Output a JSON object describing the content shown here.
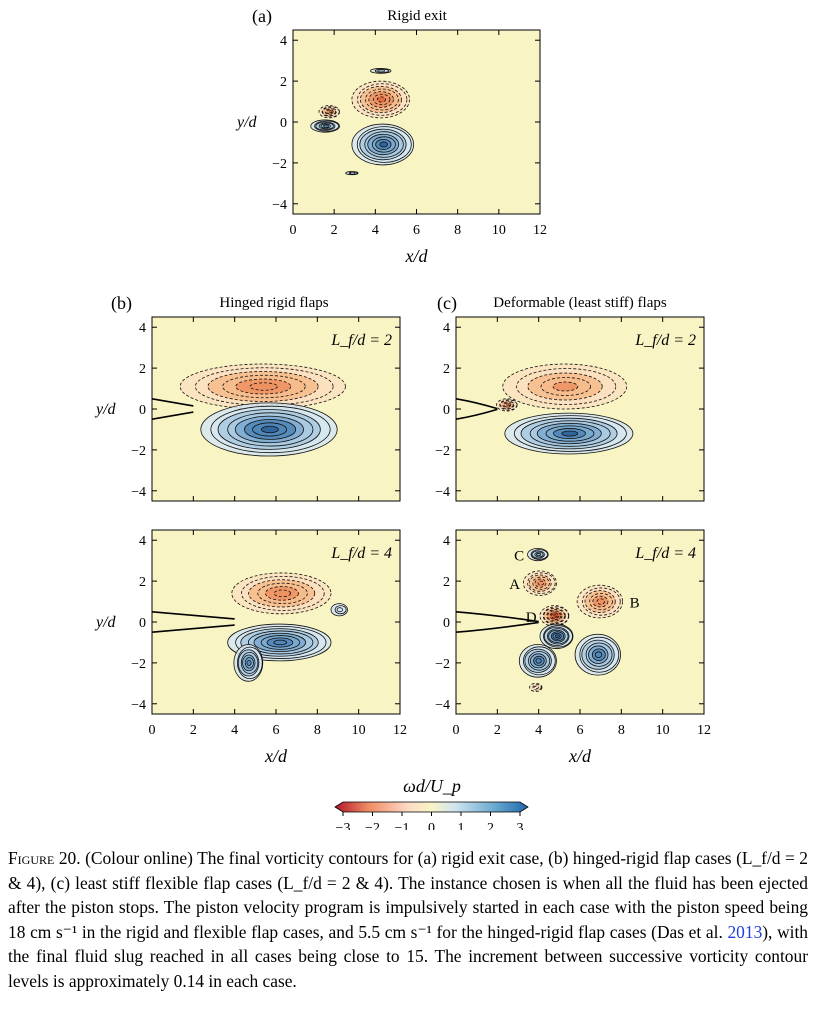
{
  "panels": [
    {
      "id": "a",
      "label": "(a)",
      "title": "Rigid exit",
      "annotation": "",
      "xlabel": "x/d",
      "ylabel": "y/d",
      "xticks": [
        "0",
        "2",
        "4",
        "6",
        "8",
        "10",
        "12"
      ],
      "yticks": [
        "4",
        "2",
        "0",
        "−2",
        "−4"
      ]
    },
    {
      "id": "b1",
      "label": "(b)",
      "title": "Hinged rigid flaps",
      "annotation": "L_f/d = 2",
      "xlabel": "",
      "ylabel": "y/d",
      "xticks": [],
      "yticks": [
        "4",
        "2",
        "0",
        "−2",
        "−4"
      ]
    },
    {
      "id": "c1",
      "label": "(c)",
      "title": "Deformable (least stiff) flaps",
      "annotation": "L_f/d = 2",
      "xlabel": "",
      "ylabel": "",
      "xticks": [],
      "yticks": [
        "4",
        "2",
        "0",
        "−2",
        "−4"
      ]
    },
    {
      "id": "b2",
      "label": "",
      "title": "",
      "annotation": "L_f/d = 4",
      "xlabel": "x/d",
      "ylabel": "y/d",
      "xticks": [
        "0",
        "2",
        "4",
        "6",
        "8",
        "10",
        "12"
      ],
      "yticks": [
        "4",
        "2",
        "0",
        "−2",
        "−4"
      ]
    },
    {
      "id": "c2",
      "label": "",
      "title": "",
      "annotation": "L_f/d = 4",
      "xlabel": "x/d",
      "ylabel": "",
      "xticks": [
        "0",
        "2",
        "4",
        "6",
        "8",
        "10",
        "12"
      ],
      "yticks": [
        "4",
        "2",
        "0",
        "−2",
        "−4"
      ]
    }
  ],
  "vortex_labels": [
    "C",
    "A",
    "D",
    "B"
  ],
  "colorbar": {
    "label": "ωd/U_p",
    "ticks": [
      "−3",
      "−2",
      "−1",
      "0",
      "1",
      "2",
      "3"
    ],
    "colors": [
      "#b2182b",
      "#ef8a62",
      "#fddbc7",
      "#f7f7c4",
      "#d1e5f0",
      "#67a9cf",
      "#2166ac"
    ]
  },
  "colors": {
    "background": "#f8f4c4",
    "positive": "#3b6fa8",
    "negative": "#d2452a"
  },
  "caption": {
    "lead": "Figure 20.",
    "text1": " (Colour online) The final vorticity contours for (a) rigid exit case, (b) hinged-rigid flap cases (L_f/d = 2 & 4), (c) least stiff flexible flap cases (L_f/d = 2 & 4). The instance chosen is when all the fluid has been ejected after the piston stops. The piston velocity program is impulsively started in each case with the piston speed being 18 cm s⁻¹ in the rigid and flexible flap cases, and 5.5 cm s⁻¹ for the hinged-rigid flap cases (Das et al. ",
    "cite": "2013",
    "text2": "), with the final fluid slug reached in all cases being close to 15. The increment between successive vorticity contour levels is approximately 0.14 in each case."
  },
  "chart_data": [
    {
      "type": "heatmap",
      "title": "Rigid exit",
      "xlabel": "x/d",
      "ylabel": "y/d",
      "xlim": [
        0,
        12
      ],
      "ylim": [
        -4.5,
        4.5
      ],
      "contour_increment": 0.14,
      "vortices": [
        {
          "x": 4.3,
          "y": 1.1,
          "rx": 1.4,
          "ry": 0.9,
          "sign": "negative",
          "peak": -2.2
        },
        {
          "x": 4.4,
          "y": -1.1,
          "rx": 1.5,
          "ry": 1.0,
          "sign": "positive",
          "peak": 2.6
        },
        {
          "x": 1.8,
          "y": 0.5,
          "rx": 0.5,
          "ry": 0.3,
          "sign": "negative",
          "peak": -2.0
        },
        {
          "x": 1.6,
          "y": -0.2,
          "rx": 0.7,
          "ry": 0.3,
          "sign": "positive",
          "peak": 2.0
        },
        {
          "x": 4.3,
          "y": 2.5,
          "rx": 0.5,
          "ry": 0.12,
          "sign": "positive",
          "peak": 0.5
        },
        {
          "x": 2.9,
          "y": -2.5,
          "rx": 0.3,
          "ry": 0.08,
          "sign": "positive",
          "peak": 0.4
        }
      ]
    },
    {
      "type": "heatmap",
      "title": "Hinged rigid flaps",
      "annotation": "L_f/d = 2",
      "xlim": [
        0,
        12
      ],
      "ylim": [
        -4.5,
        4.5
      ],
      "flap_length": 2,
      "vortices": [
        {
          "x": 5.4,
          "y": 1.1,
          "rx": 4.0,
          "ry": 1.1,
          "sign": "negative",
          "peak": -2.0
        },
        {
          "x": 5.7,
          "y": -1.0,
          "rx": 3.3,
          "ry": 1.3,
          "sign": "positive",
          "peak": 2.7
        }
      ]
    },
    {
      "type": "heatmap",
      "title": "Deformable (least stiff) flaps",
      "annotation": "L_f/d = 2",
      "xlim": [
        0,
        12
      ],
      "ylim": [
        -4.5,
        4.5
      ],
      "flap_length": 2,
      "vortices": [
        {
          "x": 5.3,
          "y": 1.1,
          "rx": 3.0,
          "ry": 1.1,
          "sign": "negative",
          "peak": -1.8
        },
        {
          "x": 5.5,
          "y": -1.2,
          "rx": 3.1,
          "ry": 1.0,
          "sign": "positive",
          "peak": 2.6
        },
        {
          "x": 2.5,
          "y": 0.2,
          "rx": 0.5,
          "ry": 0.3,
          "sign": "negative",
          "peak": -2.0
        }
      ]
    },
    {
      "type": "heatmap",
      "annotation": "L_f/d = 4",
      "xlabel": "x/d",
      "ylabel": "y/d",
      "xlim": [
        0,
        12
      ],
      "ylim": [
        -4.5,
        4.5
      ],
      "flap_length": 4,
      "vortices": [
        {
          "x": 6.3,
          "y": 1.4,
          "rx": 2.4,
          "ry": 1.0,
          "sign": "negative",
          "peak": -2.0
        },
        {
          "x": 6.2,
          "y": -1.0,
          "rx": 2.5,
          "ry": 0.9,
          "sign": "positive",
          "peak": 2.5
        },
        {
          "x": 4.7,
          "y": -2.0,
          "rx": 0.7,
          "ry": 0.9,
          "sign": "positive",
          "peak": 2.2
        },
        {
          "x": 9.1,
          "y": 0.6,
          "rx": 0.4,
          "ry": 0.3,
          "sign": "positive",
          "peak": 0.6
        }
      ]
    },
    {
      "type": "heatmap",
      "annotation": "L_f/d = 4",
      "xlabel": "x/d",
      "xlim": [
        0,
        12
      ],
      "ylim": [
        -4.5,
        4.5
      ],
      "flap_length": 4,
      "vortices": [
        {
          "label": "C",
          "x": 4.0,
          "y": 3.3,
          "rx": 0.5,
          "ry": 0.3,
          "sign": "positive",
          "peak": 1.5
        },
        {
          "label": "A",
          "x": 4.1,
          "y": 1.9,
          "rx": 0.8,
          "ry": 0.6,
          "sign": "negative",
          "peak": -2.0
        },
        {
          "label": "D",
          "x": 4.8,
          "y": 0.3,
          "rx": 0.7,
          "ry": 0.5,
          "sign": "negative",
          "peak": -2.8
        },
        {
          "label": "B",
          "x": 7.0,
          "y": 1.0,
          "rx": 1.1,
          "ry": 0.8,
          "sign": "negative",
          "peak": -2.0
        },
        {
          "x": 4.9,
          "y": -0.7,
          "rx": 0.8,
          "ry": 0.6,
          "sign": "positive",
          "peak": 2.8
        },
        {
          "x": 4.0,
          "y": -1.9,
          "rx": 0.9,
          "ry": 0.8,
          "sign": "positive",
          "peak": 2.4
        },
        {
          "x": 6.9,
          "y": -1.6,
          "rx": 1.1,
          "ry": 1.0,
          "sign": "positive",
          "peak": 2.4
        },
        {
          "x": 3.9,
          "y": -3.2,
          "rx": 0.3,
          "ry": 0.2,
          "sign": "negative",
          "peak": -0.8
        }
      ]
    }
  ]
}
